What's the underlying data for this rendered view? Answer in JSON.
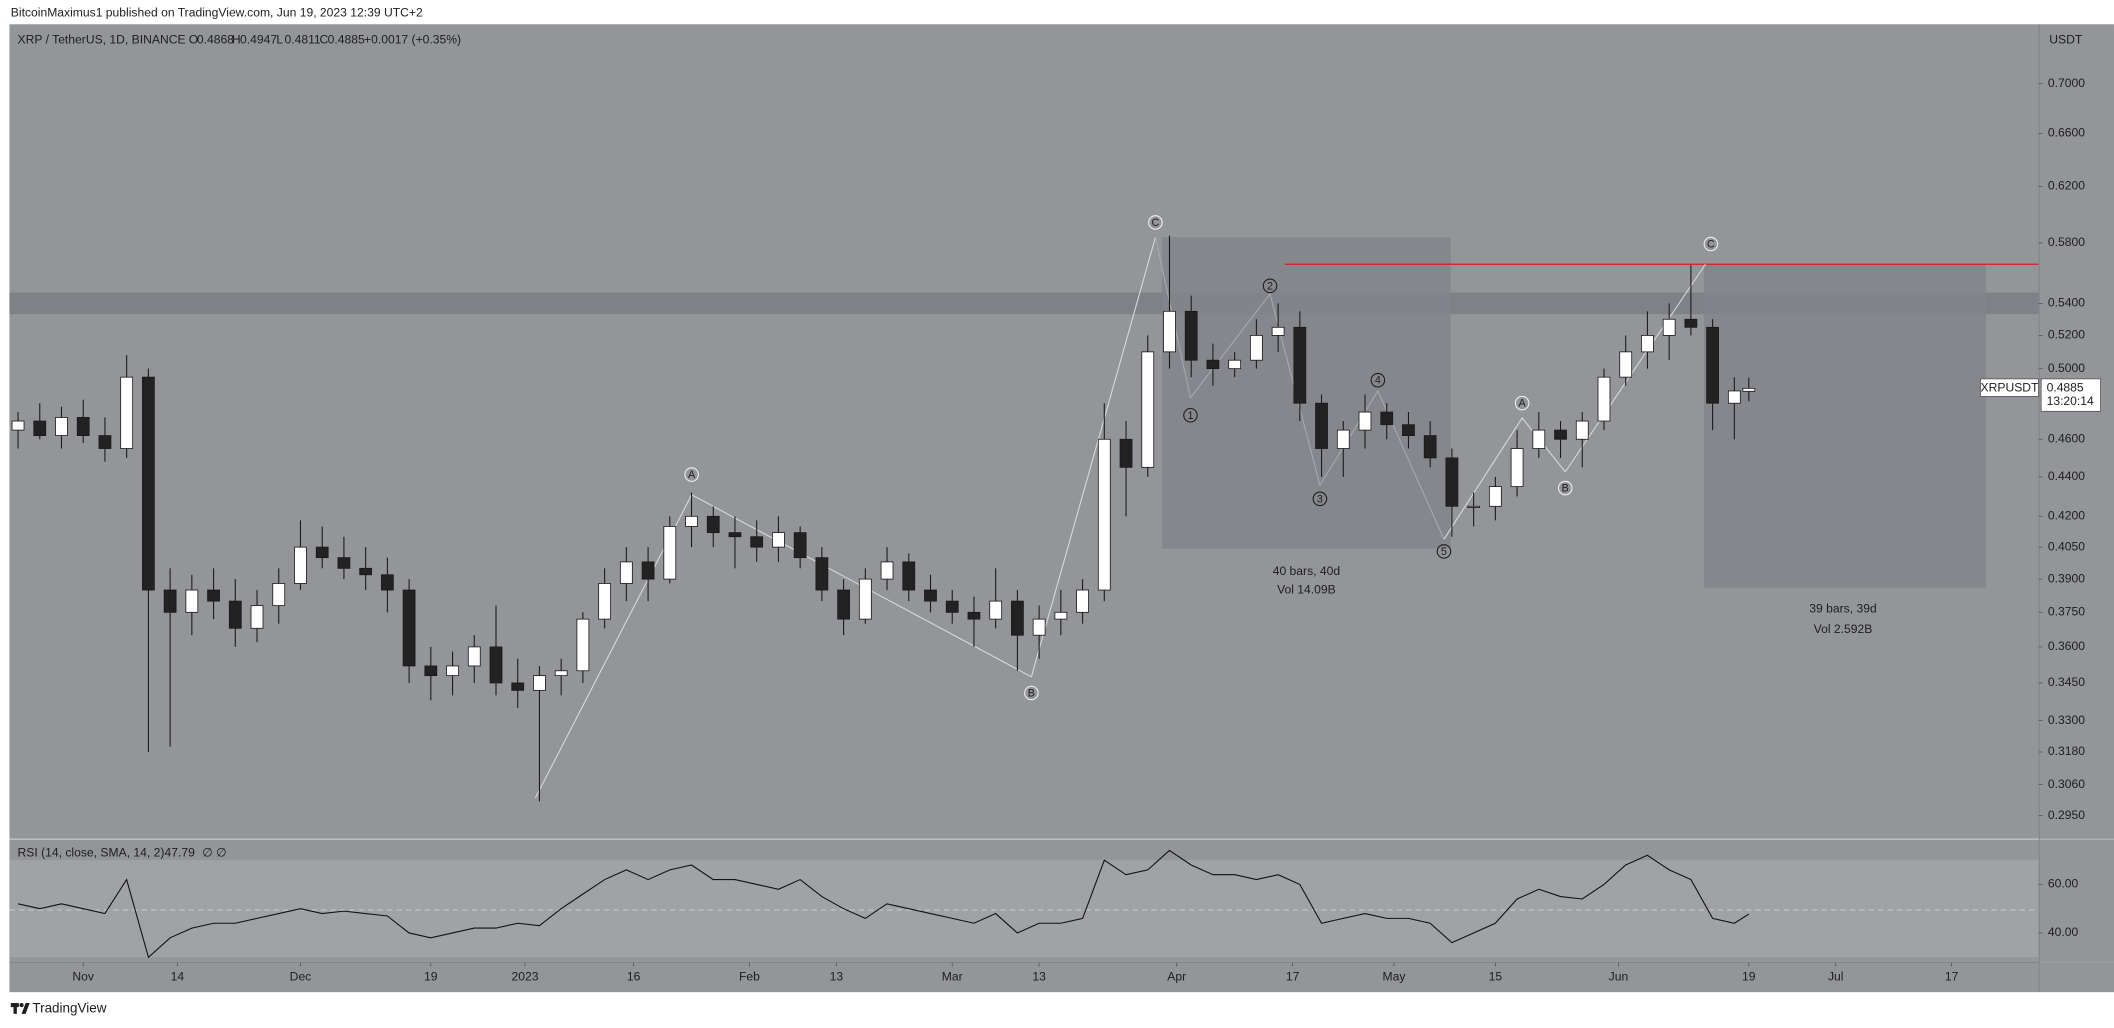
{
  "header": {
    "publisher": "BitcoinMaximus1 published on TradingView.com, Jun 19, 2023 12:39 UTC+2"
  },
  "footer": {
    "brand": "TradingView"
  },
  "chart_data": {
    "type": "candlestick",
    "title": "XRP / TetherUS, 1D, BINANCE",
    "ohlc_letters": [
      "O",
      "H",
      "L",
      "C"
    ],
    "change": "+0.0017 (+0.35%)",
    "currency": "USDT",
    "symbol": "XRPUSDT",
    "last_price": 0.4885,
    "countdown": "13:20:14",
    "log_scale": true,
    "grid": false,
    "up_color": "#ffffff",
    "down_color": "#222222",
    "x": [
      "2022-10-23",
      "2022-10-26",
      "2022-10-29",
      "2022-11-01",
      "2022-11-04",
      "2022-11-07",
      "2022-11-10",
      "2022-11-13",
      "2022-11-16",
      "2022-11-19",
      "2022-11-22",
      "2022-11-25",
      "2022-11-28",
      "2022-12-01",
      "2022-12-04",
      "2022-12-07",
      "2022-12-10",
      "2022-12-13",
      "2022-12-16",
      "2022-12-19",
      "2022-12-22",
      "2022-12-25",
      "2022-12-28",
      "2022-12-31",
      "2023-01-03",
      "2023-01-06",
      "2023-01-09",
      "2023-01-12",
      "2023-01-15",
      "2023-01-18",
      "2023-01-21",
      "2023-01-24",
      "2023-01-27",
      "2023-01-30",
      "2023-02-02",
      "2023-02-05",
      "2023-02-08",
      "2023-02-11",
      "2023-02-14",
      "2023-02-17",
      "2023-02-20",
      "2023-02-23",
      "2023-02-26",
      "2023-03-01",
      "2023-03-04",
      "2023-03-07",
      "2023-03-10",
      "2023-03-13",
      "2023-03-16",
      "2023-03-19",
      "2023-03-22",
      "2023-03-25",
      "2023-03-28",
      "2023-03-31",
      "2023-04-03",
      "2023-04-06",
      "2023-04-09",
      "2023-04-12",
      "2023-04-15",
      "2023-04-18",
      "2023-04-21",
      "2023-04-24",
      "2023-04-27",
      "2023-04-30",
      "2023-05-03",
      "2023-05-06",
      "2023-05-09",
      "2023-05-12",
      "2023-05-15",
      "2023-05-18",
      "2023-05-21",
      "2023-05-24",
      "2023-05-27",
      "2023-05-30",
      "2023-06-02",
      "2023-06-05",
      "2023-06-08",
      "2023-06-11",
      "2023-06-14",
      "2023-06-17",
      "2023-06-19"
    ],
    "open": [
      0.465,
      0.47,
      0.462,
      0.472,
      0.462,
      0.455,
      0.495,
      0.385,
      0.375,
      0.385,
      0.38,
      0.368,
      0.378,
      0.388,
      0.405,
      0.4,
      0.395,
      0.392,
      0.385,
      0.352,
      0.348,
      0.352,
      0.36,
      0.345,
      0.342,
      0.348,
      0.35,
      0.372,
      0.388,
      0.398,
      0.39,
      0.415,
      0.42,
      0.412,
      0.41,
      0.405,
      0.412,
      0.4,
      0.385,
      0.372,
      0.39,
      0.398,
      0.385,
      0.38,
      0.375,
      0.372,
      0.38,
      0.365,
      0.372,
      0.375,
      0.385,
      0.46,
      0.445,
      0.51,
      0.535,
      0.505,
      0.5,
      0.505,
      0.52,
      0.525,
      0.48,
      0.455,
      0.465,
      0.475,
      0.468,
      0.462,
      0.45,
      0.425,
      0.425,
      0.435,
      0.455,
      0.465,
      0.46,
      0.47,
      0.495,
      0.51,
      0.52,
      0.53,
      0.525,
      0.48,
      0.4868
    ],
    "high": [
      0.475,
      0.48,
      0.478,
      0.482,
      0.472,
      0.508,
      0.5,
      0.395,
      0.392,
      0.395,
      0.39,
      0.385,
      0.395,
      0.418,
      0.415,
      0.41,
      0.405,
      0.4,
      0.39,
      0.36,
      0.358,
      0.365,
      0.378,
      0.355,
      0.352,
      0.355,
      0.375,
      0.395,
      0.405,
      0.405,
      0.42,
      0.432,
      0.425,
      0.42,
      0.418,
      0.42,
      0.415,
      0.405,
      0.39,
      0.395,
      0.405,
      0.402,
      0.392,
      0.385,
      0.382,
      0.395,
      0.385,
      0.378,
      0.385,
      0.39,
      0.48,
      0.47,
      0.52,
      0.585,
      0.545,
      0.515,
      0.51,
      0.53,
      0.54,
      0.535,
      0.485,
      0.47,
      0.485,
      0.48,
      0.475,
      0.47,
      0.455,
      0.432,
      0.44,
      0.465,
      0.475,
      0.47,
      0.475,
      0.5,
      0.52,
      0.535,
      0.54,
      0.565,
      0.53,
      0.495,
      0.4947
    ],
    "low": [
      0.455,
      0.46,
      0.455,
      0.458,
      0.448,
      0.45,
      0.318,
      0.32,
      0.365,
      0.372,
      0.36,
      0.362,
      0.37,
      0.385,
      0.395,
      0.39,
      0.385,
      0.375,
      0.345,
      0.338,
      0.34,
      0.345,
      0.34,
      0.335,
      0.3,
      0.34,
      0.345,
      0.368,
      0.38,
      0.38,
      0.388,
      0.405,
      0.405,
      0.395,
      0.398,
      0.398,
      0.395,
      0.38,
      0.365,
      0.37,
      0.385,
      0.38,
      0.375,
      0.37,
      0.36,
      0.368,
      0.35,
      0.355,
      0.365,
      0.37,
      0.38,
      0.42,
      0.44,
      0.5,
      0.495,
      0.49,
      0.495,
      0.5,
      0.51,
      0.47,
      0.44,
      0.44,
      0.455,
      0.46,
      0.455,
      0.445,
      0.41,
      0.415,
      0.418,
      0.43,
      0.45,
      0.45,
      0.445,
      0.465,
      0.49,
      0.5,
      0.505,
      0.52,
      0.465,
      0.46,
      0.4811
    ],
    "close": [
      0.47,
      0.462,
      0.472,
      0.462,
      0.455,
      0.495,
      0.385,
      0.375,
      0.385,
      0.38,
      0.368,
      0.378,
      0.388,
      0.405,
      0.4,
      0.395,
      0.392,
      0.385,
      0.352,
      0.348,
      0.352,
      0.36,
      0.345,
      0.342,
      0.348,
      0.35,
      0.372,
      0.388,
      0.398,
      0.39,
      0.415,
      0.42,
      0.412,
      0.41,
      0.405,
      0.412,
      0.4,
      0.385,
      0.372,
      0.39,
      0.398,
      0.385,
      0.38,
      0.375,
      0.372,
      0.38,
      0.365,
      0.372,
      0.375,
      0.385,
      0.46,
      0.445,
      0.51,
      0.535,
      0.505,
      0.5,
      0.505,
      0.52,
      0.525,
      0.48,
      0.455,
      0.465,
      0.475,
      0.468,
      0.462,
      0.45,
      0.425,
      0.425,
      0.435,
      0.455,
      0.465,
      0.46,
      0.47,
      0.495,
      0.51,
      0.52,
      0.53,
      0.525,
      0.48,
      0.487,
      0.4885
    ],
    "xlim": [
      "2022-10-22",
      "2023-07-29"
    ],
    "xticks": [
      {
        "value": "2022-11-01",
        "label": "Nov"
      },
      {
        "value": "2022-11-14",
        "label": "14"
      },
      {
        "value": "2022-12-01",
        "label": "Dec"
      },
      {
        "value": "2022-12-19",
        "label": "19"
      },
      {
        "value": "2023-01-01",
        "label": "2023"
      },
      {
        "value": "2023-01-16",
        "label": "16"
      },
      {
        "value": "2023-02-01",
        "label": "Feb"
      },
      {
        "value": "2023-02-13",
        "label": "13"
      },
      {
        "value": "2023-03-01",
        "label": "Mar"
      },
      {
        "value": "2023-03-13",
        "label": "13"
      },
      {
        "value": "2023-04-01",
        "label": "Apr"
      },
      {
        "value": "2023-04-17",
        "label": "17"
      },
      {
        "value": "2023-05-01",
        "label": "May"
      },
      {
        "value": "2023-05-15",
        "label": "15"
      },
      {
        "value": "2023-06-01",
        "label": "Jun"
      },
      {
        "value": "2023-06-19",
        "label": "19"
      },
      {
        "value": "2023-07-01",
        "label": "Jul"
      },
      {
        "value": "2023-07-17",
        "label": "17"
      }
    ],
    "ylim": [
      0.2871,
      0.7508
    ],
    "yticks": [
      {
        "value": 0.295,
        "label": "0.2950"
      },
      {
        "value": 0.306,
        "label": "0.3060"
      },
      {
        "value": 0.318,
        "label": "0.3180"
      },
      {
        "value": 0.33,
        "label": "0.3300"
      },
      {
        "value": 0.345,
        "label": "0.3450"
      },
      {
        "value": 0.36,
        "label": "0.3600"
      },
      {
        "value": 0.375,
        "label": "0.3750"
      },
      {
        "value": 0.39,
        "label": "0.3900"
      },
      {
        "value": 0.405,
        "label": "0.4050"
      },
      {
        "value": 0.42,
        "label": "0.4200"
      },
      {
        "value": 0.44,
        "label": "0.4400"
      },
      {
        "value": 0.46,
        "label": "0.4600"
      },
      {
        "value": 0.5,
        "label": "0.5000"
      },
      {
        "value": 0.52,
        "label": "0.5200"
      },
      {
        "value": 0.54,
        "label": "0.5400"
      },
      {
        "value": 0.58,
        "label": "0.5800"
      },
      {
        "value": 0.62,
        "label": "0.6200"
      },
      {
        "value": 0.66,
        "label": "0.6600"
      },
      {
        "value": 0.7,
        "label": "0.7000"
      }
    ],
    "wave_labels": [
      "C",
      "A",
      "B",
      "1",
      "2",
      "3",
      "4",
      "5",
      "A",
      "B",
      "C"
    ],
    "boxes": [
      {
        "bars": "40 bars, 40d",
        "volume": "Vol 14.09B"
      },
      {
        "bars": "39 bars, 39d",
        "volume": "Vol 2.592B"
      }
    ],
    "rsi": {
      "label": "RSI (14, close, SMA, 14, 2)",
      "extra": "∅ ∅",
      "color": "#111111",
      "values": [
        52,
        50,
        52,
        50,
        48,
        62,
        30,
        38,
        42,
        44,
        44,
        46,
        48,
        50,
        48,
        49,
        48,
        47,
        40,
        38,
        40,
        42,
        42,
        44,
        43,
        50,
        56,
        62,
        66,
        62,
        66,
        68,
        62,
        62,
        60,
        58,
        62,
        55,
        50,
        46,
        52,
        50,
        48,
        46,
        44,
        48,
        40,
        44,
        44,
        46,
        70,
        64,
        66,
        74,
        68,
        64,
        64,
        62,
        64,
        60,
        44,
        46,
        48,
        46,
        46,
        44,
        36,
        40,
        44,
        54,
        58,
        55,
        54,
        60,
        68,
        72,
        66,
        62,
        46,
        44,
        47.79
      ],
      "ylim": [
        28.9,
        77.8
      ],
      "yticks": [
        {
          "value": 40,
          "label": "40.00"
        },
        {
          "value": 60,
          "label": "60.00"
        }
      ]
    }
  }
}
